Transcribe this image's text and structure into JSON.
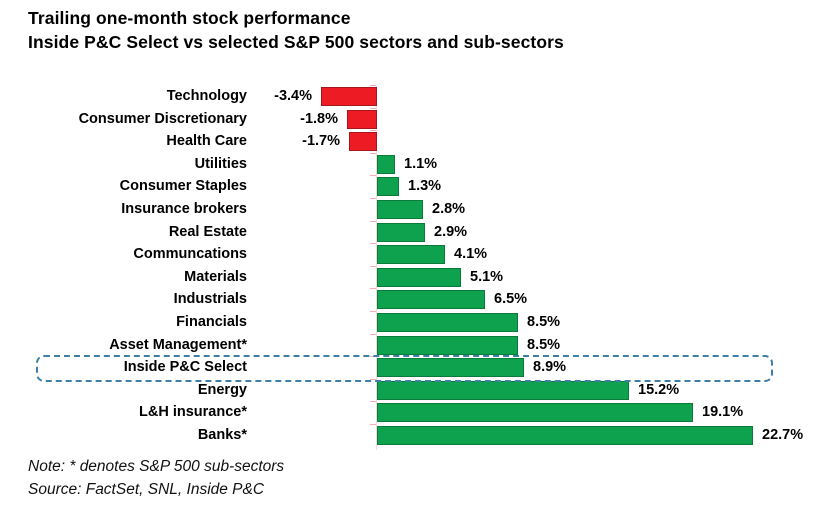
{
  "title": {
    "line1": "Trailing one-month stock performance",
    "line2": "Inside P&C Select vs selected S&P 500 sectors and sub-sectors"
  },
  "chart_data": {
    "type": "bar",
    "orientation": "horizontal",
    "title": "Trailing one-month stock performance",
    "subtitle": "Inside P&C Select vs selected S&P 500 sectors and sub-sectors",
    "categories": [
      "Technology",
      "Consumer Discretionary",
      "Health Care",
      "Utilities",
      "Consumer Staples",
      "Insurance brokers",
      "Real Estate",
      "Communcations",
      "Materials",
      "Industrials",
      "Financials",
      "Asset Management*",
      "Inside P&C Select",
      "Energy",
      "L&H insurance*",
      "Banks*"
    ],
    "values": [
      -3.4,
      -1.8,
      -1.7,
      1.1,
      1.3,
      2.8,
      2.9,
      4.1,
      5.1,
      6.5,
      8.5,
      8.5,
      8.9,
      15.2,
      19.1,
      22.7
    ],
    "value_labels": [
      "-3.4%",
      "-1.8%",
      "-1.7%",
      "1.1%",
      "1.3%",
      "2.8%",
      "2.9%",
      "4.1%",
      "5.1%",
      "6.5%",
      "8.5%",
      "8.5%",
      "8.9%",
      "15.2%",
      "19.1%",
      "22.7%"
    ],
    "highlight_category": "Inside P&C Select",
    "positive_color": "#0ea24e",
    "positive_border_color": "#0b7a3a",
    "negative_color": "#ed1c24",
    "negative_border_color": "#a6161c",
    "highlight_border_color": "#3e7fa5",
    "xlim": [
      -3.4,
      22.7
    ],
    "grid": false,
    "legend": false
  },
  "notes": {
    "note": "Note: * denotes S&P 500 sub-sectors",
    "source": "Source: FactSet, SNL, Inside P&C"
  }
}
